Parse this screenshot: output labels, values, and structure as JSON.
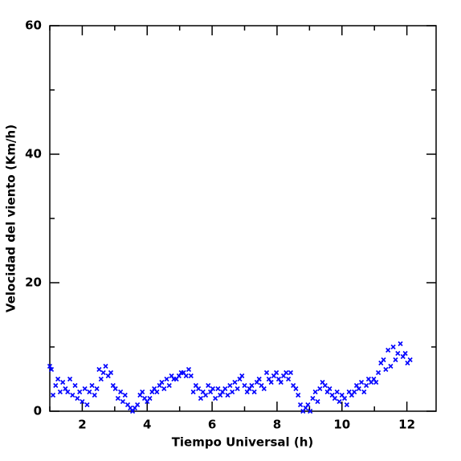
{
  "chart_data": {
    "type": "scatter",
    "xlabel": "Tiempo Universal (h)",
    "ylabel": "Velocidad del viento (Km/h)",
    "xlim": [
      1,
      12.9
    ],
    "xticks": [
      2,
      4,
      6,
      8,
      10,
      12
    ],
    "xminorticks": [
      1,
      3,
      5,
      7,
      9,
      11
    ],
    "ylim": [
      0,
      60
    ],
    "yticks": [
      0,
      20,
      40,
      60
    ],
    "yminorticks": [
      10,
      30,
      50
    ],
    "marker": "x",
    "color": "#0000ff",
    "x": [
      1.0,
      1.05,
      1.1,
      1.18,
      1.25,
      1.32,
      1.4,
      1.48,
      1.55,
      1.62,
      1.7,
      1.78,
      1.85,
      1.92,
      2.0,
      2.08,
      2.15,
      2.22,
      2.3,
      2.38,
      2.45,
      2.52,
      2.58,
      2.65,
      2.72,
      2.8,
      2.88,
      2.95,
      3.02,
      3.1,
      3.18,
      3.25,
      3.32,
      3.4,
      3.48,
      3.55,
      3.62,
      3.7,
      3.78,
      3.85,
      3.92,
      4.0,
      4.08,
      4.15,
      4.22,
      4.3,
      4.38,
      4.45,
      4.52,
      4.6,
      4.68,
      4.75,
      4.82,
      4.9,
      4.98,
      5.05,
      5.12,
      5.2,
      5.28,
      5.35,
      5.42,
      5.5,
      5.58,
      5.65,
      5.72,
      5.8,
      5.88,
      5.95,
      6.02,
      6.1,
      6.18,
      6.25,
      6.32,
      6.4,
      6.48,
      6.55,
      6.62,
      6.7,
      6.78,
      6.85,
      6.92,
      7.0,
      7.08,
      7.15,
      7.22,
      7.3,
      7.38,
      7.45,
      7.52,
      7.6,
      7.68,
      7.75,
      7.82,
      7.9,
      7.98,
      8.05,
      8.12,
      8.2,
      8.28,
      8.35,
      8.42,
      8.5,
      8.58,
      8.65,
      8.72,
      8.8,
      8.88,
      8.95,
      9.02,
      9.1,
      9.18,
      9.25,
      9.32,
      9.4,
      9.48,
      9.55,
      9.62,
      9.7,
      9.78,
      9.85,
      9.92,
      10.0,
      10.08,
      10.15,
      10.22,
      10.3,
      10.38,
      10.45,
      10.52,
      10.6,
      10.68,
      10.75,
      10.82,
      10.9,
      10.98,
      11.05,
      11.12,
      11.2,
      11.28,
      11.35,
      11.42,
      11.5,
      11.58,
      11.65,
      11.72,
      11.8,
      11.88,
      11.95,
      12.02,
      12.1
    ],
    "values": [
      7,
      6.5,
      2.5,
      4,
      5,
      3,
      4.5,
      3.5,
      3,
      5,
      2.5,
      4,
      2,
      3,
      1.5,
      3.5,
      1,
      3,
      4,
      2.5,
      3.5,
      6.5,
      5,
      6,
      7,
      5.5,
      6,
      4,
      3.5,
      2,
      3,
      1.5,
      2.5,
      1,
      0.5,
      0,
      0.5,
      1,
      2.5,
      3,
      2,
      1.5,
      2,
      3,
      3.5,
      3,
      4,
      4.5,
      3.5,
      5,
      4,
      5.5,
      5,
      5,
      5.5,
      6,
      6,
      5.5,
      6.5,
      5.5,
      3,
      4,
      3.5,
      2,
      3,
      2.5,
      4,
      3,
      3.5,
      2,
      3.5,
      2.5,
      3,
      3.5,
      2.5,
      4,
      3,
      4.5,
      3.5,
      5,
      5.5,
      4,
      3,
      3.5,
      4,
      3,
      4.5,
      5,
      4,
      3.5,
      6,
      5,
      4.5,
      5.5,
      6,
      5,
      4.5,
      5.5,
      6,
      5,
      6,
      4,
      3.5,
      2.5,
      1,
      0,
      0.5,
      1,
      0,
      2,
      3,
      1.5,
      3.5,
      4.5,
      4,
      3,
      3.5,
      2.5,
      2,
      3,
      1.5,
      2.5,
      2,
      1,
      3,
      2.5,
      3,
      4,
      3.5,
      4.5,
      3,
      4,
      5,
      4.5,
      5,
      4.5,
      6,
      7.5,
      8,
      6.5,
      9.5,
      7,
      10,
      8,
      9,
      10.5,
      8.5,
      9,
      7.5,
      8
    ]
  }
}
